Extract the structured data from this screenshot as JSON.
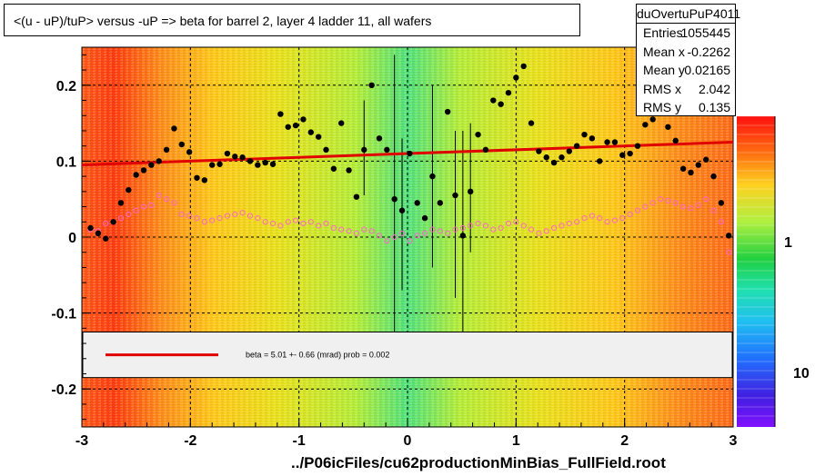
{
  "title": "<(u - uP)/tuP> versus  -uP => beta for barrel 2, layer 4 ladder 11, all wafers",
  "stats": {
    "name": "duOvertuPuP4011",
    "rows": [
      {
        "k": "Entries",
        "v": "1055445"
      },
      {
        "k": "Mean x",
        "v": "-0.2262"
      },
      {
        "k": "Mean y",
        "v": "0.02165"
      },
      {
        "k": "RMS x",
        "v": "2.042"
      },
      {
        "k": "RMS y",
        "v": "0.135"
      }
    ]
  },
  "x_axis_title": "../P06icFiles/cu62productionMinBias_FullField.root",
  "legend_text": "beta =    5.01 +-  0.66 (mrad) prob = 0.002",
  "colorbar_labels": [
    "1",
    "10"
  ],
  "colors": {
    "fit": "#e00000",
    "points": "#000000",
    "open": "#ff66cc",
    "band": "#a8f040"
  },
  "chart_data": {
    "type": "scatter",
    "xlim": [
      -3,
      3
    ],
    "ylim": [
      -0.25,
      0.25
    ],
    "xticks": [
      "-3",
      "-2",
      "-1",
      "0",
      "1",
      "2",
      "3"
    ],
    "yticks": [
      "0.2",
      "0.1",
      "0",
      "-0.1",
      "-0.2"
    ],
    "grid": true,
    "fit_line": {
      "x": [
        -3,
        3
      ],
      "y": [
        0.095,
        0.125
      ]
    },
    "mean_points": {
      "x": [
        -2.92,
        -2.85,
        -2.78,
        -2.71,
        -2.64,
        -2.57,
        -2.5,
        -2.43,
        -2.36,
        -2.29,
        -2.22,
        -2.15,
        -2.08,
        -2.01,
        -1.94,
        -1.87,
        -1.8,
        -1.73,
        -1.66,
        -1.59,
        -1.52,
        -1.45,
        -1.38,
        -1.31,
        -1.24,
        -1.17,
        -1.1,
        -1.03,
        -0.96,
        -0.89,
        -0.82,
        -0.75,
        -0.68,
        -0.61,
        -0.54,
        -0.47,
        -0.4,
        -0.33,
        -0.26,
        -0.19,
        -0.12,
        -0.05,
        0.02,
        0.09,
        0.16,
        0.23,
        0.3,
        0.37,
        0.44,
        0.51,
        0.58,
        0.65,
        0.72,
        0.79,
        0.86,
        0.93,
        1.0,
        1.07,
        1.14,
        1.21,
        1.28,
        1.35,
        1.42,
        1.49,
        1.56,
        1.63,
        1.7,
        1.77,
        1.84,
        1.91,
        1.98,
        2.05,
        2.12,
        2.19,
        2.26,
        2.33,
        2.4,
        2.47,
        2.54,
        2.61,
        2.68,
        2.75,
        2.82,
        2.89,
        2.96
      ],
      "y": [
        0.012,
        0.005,
        -0.002,
        0.02,
        0.045,
        0.062,
        0.082,
        0.088,
        0.095,
        0.1,
        0.115,
        0.143,
        0.122,
        0.112,
        0.078,
        0.075,
        0.095,
        0.096,
        0.11,
        0.106,
        0.105,
        0.1,
        0.095,
        0.098,
        0.096,
        0.162,
        0.145,
        0.147,
        0.155,
        0.138,
        0.132,
        0.115,
        0.09,
        0.15,
        0.088,
        0.053,
        0.115,
        0.2,
        0.13,
        0.115,
        0.05,
        0.035,
        0.11,
        0.045,
        0.025,
        0.08,
        0.045,
        0.165,
        0.055,
        0.002,
        0.06,
        0.135,
        0.115,
        0.18,
        0.175,
        0.19,
        0.21,
        0.225,
        0.15,
        0.113,
        0.105,
        0.098,
        0.105,
        0.113,
        0.12,
        0.135,
        0.13,
        0.1,
        0.125,
        0.125,
        0.108,
        0.11,
        0.12,
        0.148,
        0.155,
        0.168,
        0.145,
        0.127,
        0.09,
        0.085,
        0.095,
        0.102,
        0.08,
        0.045,
        0.002
      ]
    },
    "open_points": {
      "x": [
        -2.92,
        -2.85,
        -2.78,
        -2.71,
        -2.64,
        -2.57,
        -2.5,
        -2.43,
        -2.36,
        -2.29,
        -2.22,
        -2.15,
        -2.08,
        -2.01,
        -1.94,
        -1.87,
        -1.8,
        -1.73,
        -1.66,
        -1.59,
        -1.52,
        -1.45,
        -1.38,
        -1.31,
        -1.24,
        -1.17,
        -1.1,
        -1.03,
        -0.96,
        -0.89,
        -0.82,
        -0.75,
        -0.68,
        -0.61,
        -0.54,
        -0.47,
        -0.4,
        -0.33,
        -0.26,
        -0.19,
        -0.12,
        -0.05,
        0.02,
        0.09,
        0.16,
        0.23,
        0.3,
        0.37,
        0.44,
        0.51,
        0.58,
        0.65,
        0.72,
        0.79,
        0.86,
        0.93,
        1.0,
        1.07,
        1.14,
        1.21,
        1.28,
        1.35,
        1.42,
        1.49,
        1.56,
        1.63,
        1.7,
        1.77,
        1.84,
        1.91,
        1.98,
        2.05,
        2.12,
        2.19,
        2.26,
        2.33,
        2.4,
        2.47,
        2.54,
        2.61,
        2.68,
        2.75,
        2.82,
        2.89,
        2.96
      ],
      "y": [
        0.01,
        0.008,
        0.018,
        0.02,
        0.025,
        0.03,
        0.035,
        0.04,
        0.042,
        0.055,
        0.05,
        0.045,
        0.03,
        0.028,
        0.025,
        0.02,
        0.022,
        0.025,
        0.028,
        0.03,
        0.032,
        0.028,
        0.025,
        0.02,
        0.018,
        0.015,
        0.02,
        0.022,
        0.018,
        0.02,
        0.015,
        0.018,
        0.012,
        0.01,
        0.008,
        0.005,
        0.01,
        0.008,
        0.002,
        -0.005,
        0.0,
        0.005,
        -0.005,
        0.002,
        0.005,
        0.01,
        0.008,
        0.005,
        0.01,
        0.012,
        0.015,
        0.018,
        0.015,
        0.01,
        0.012,
        0.018,
        0.02,
        0.015,
        0.01,
        0.005,
        0.008,
        0.012,
        0.015,
        0.018,
        0.02,
        0.025,
        0.028,
        0.025,
        0.02,
        0.022,
        0.025,
        0.03,
        0.035,
        0.04,
        0.045,
        0.05,
        0.048,
        0.045,
        0.04,
        0.038,
        0.042,
        0.05,
        0.035,
        0.02,
        -0.02
      ]
    },
    "error_bars": [
      {
        "x": -0.4,
        "y0": 0.055,
        "y1": 0.18
      },
      {
        "x": -0.12,
        "y0": -0.13,
        "y1": 0.24
      },
      {
        "x": -0.05,
        "y0": -0.07,
        "y1": 0.13
      },
      {
        "x": 0.23,
        "y0": -0.04,
        "y1": 0.2
      },
      {
        "x": 0.44,
        "y0": -0.08,
        "y1": 0.14
      },
      {
        "x": 0.51,
        "y0": -0.13,
        "y1": 0.14
      },
      {
        "x": 0.58,
        "y0": -0.02,
        "y1": 0.15
      }
    ]
  }
}
